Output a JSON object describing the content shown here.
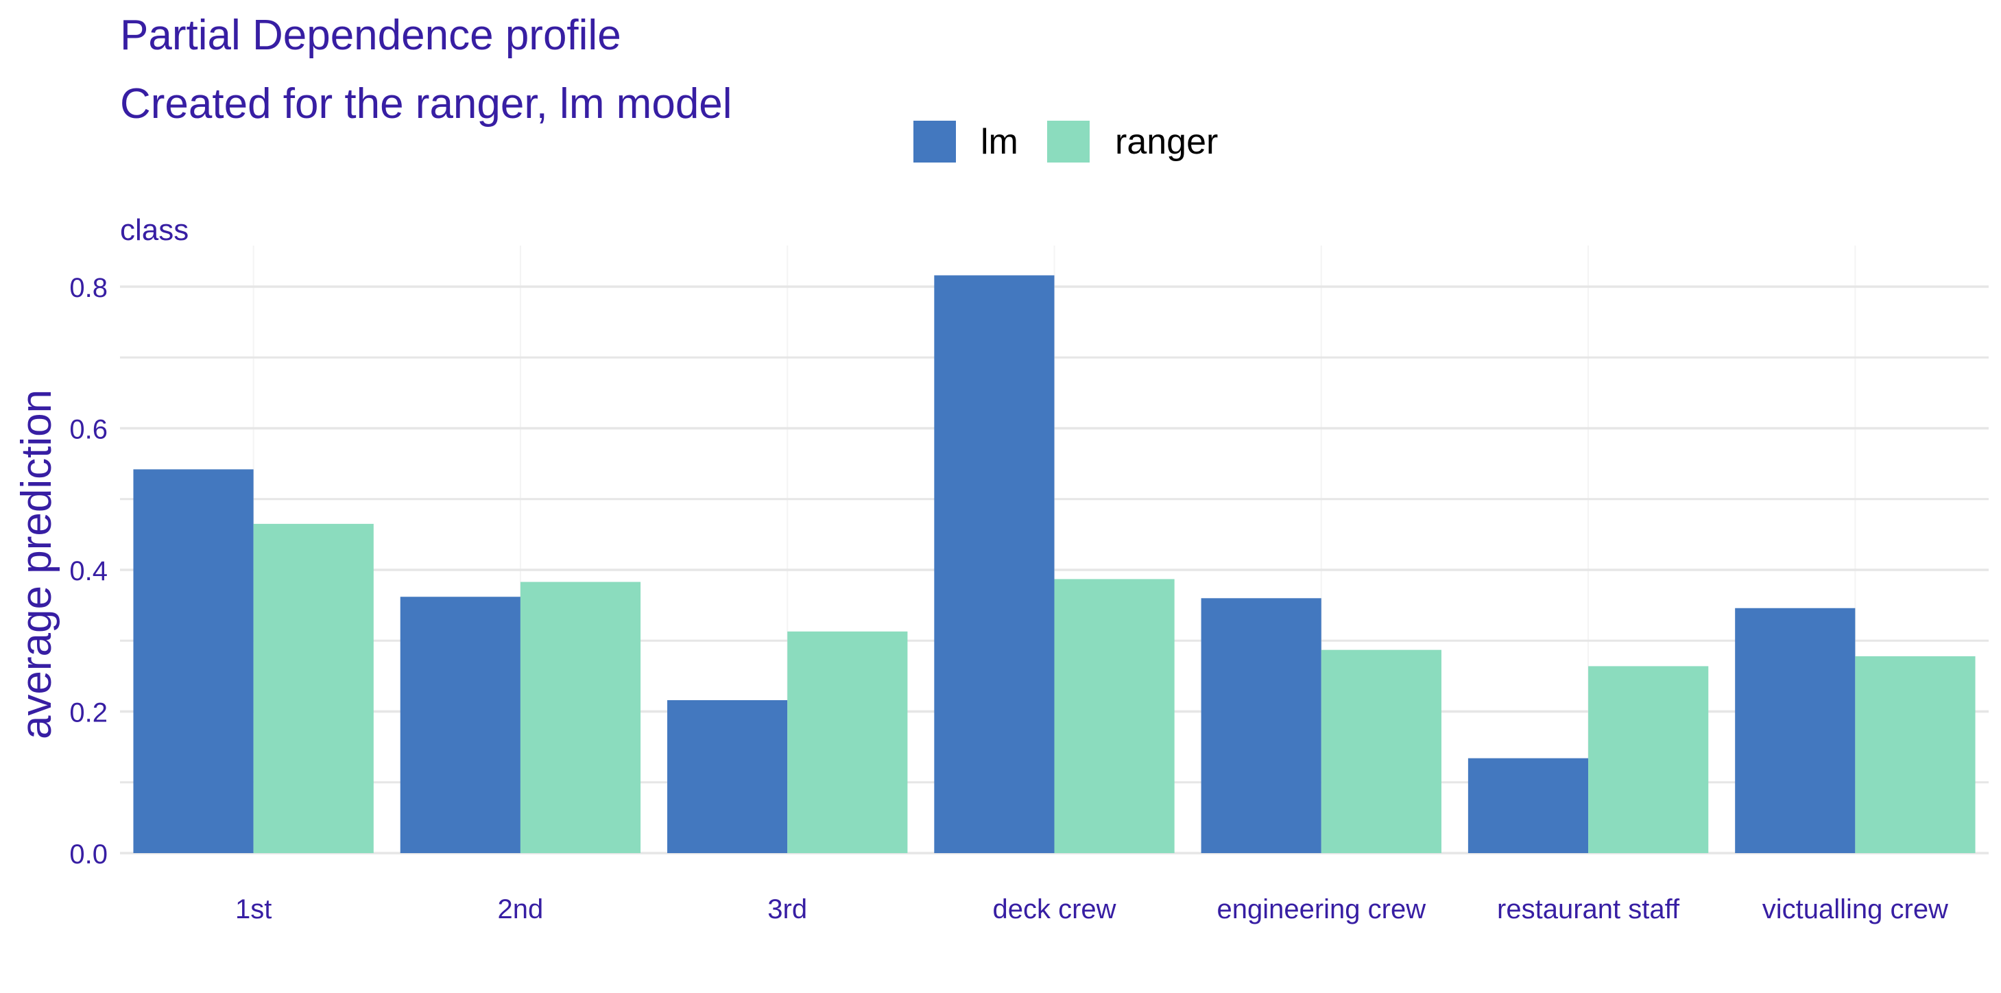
{
  "chart_data": {
    "type": "bar",
    "title": "Partial Dependence profile",
    "subtitle": "Created for the ranger, lm model",
    "facet_label": "class",
    "xlabel": "",
    "ylabel": "average prediction",
    "categories": [
      "1st",
      "2nd",
      "3rd",
      "deck crew",
      "engineering crew",
      "restaurant staff",
      "victualling crew"
    ],
    "series": [
      {
        "name": "lm",
        "color": "#4378bf",
        "values": [
          0.542,
          0.362,
          0.216,
          0.816,
          0.36,
          0.134,
          0.346
        ]
      },
      {
        "name": "ranger",
        "color": "#8bdcbe",
        "values": [
          0.465,
          0.383,
          0.313,
          0.387,
          0.287,
          0.264,
          0.278
        ]
      }
    ],
    "ylim": [
      0,
      0.8
    ],
    "yticks": [
      "0.0",
      "0.2",
      "0.4",
      "0.6",
      "0.8"
    ],
    "grid": true,
    "legend_position": "top",
    "text_color": "#371ea3",
    "grid_color": "#e6e6e6"
  }
}
